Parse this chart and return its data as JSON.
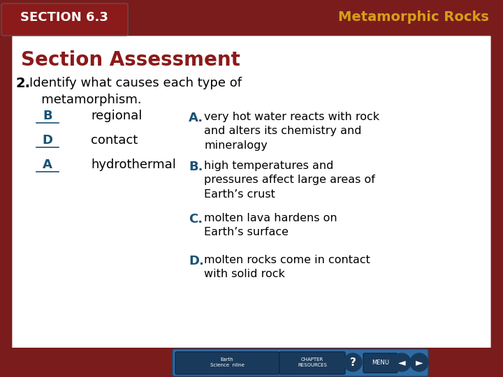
{
  "title_section": "SECTION 6.3",
  "title_main": "Metamorphic Rocks",
  "heading": "Section Assessment",
  "question_number": "2.",
  "question_text": "Identify what causes each type of\n   metamorphism.",
  "left_answers": [
    "B",
    "D",
    "A"
  ],
  "left_types": [
    "regional",
    "contact",
    "hydrothermal"
  ],
  "right_items": [
    {
      "letter": "A.",
      "text": "very hot water reacts with rock\nand alters its chemistry and\nmineralogy"
    },
    {
      "letter": "B.",
      "text": "high temperatures and\npressures affect large areas of\nEarth’s crust"
    },
    {
      "letter": "C.",
      "text": "molten lava hardens on\nEarth’s surface"
    },
    {
      "letter": "D.",
      "text": "molten rocks come in contact\nwith solid rock"
    }
  ],
  "bg_outer": "#7B1C1C",
  "bg_inner": "#FFFFFF",
  "header_bg": "#7B1C1C",
  "section_text_color": "#FFFFFF",
  "title_color": "#D4A017",
  "heading_color": "#8B1A1A",
  "question_color": "#000000",
  "answer_letter_color": "#1A5276",
  "right_letter_color": "#1A5276",
  "right_text_color": "#000000"
}
